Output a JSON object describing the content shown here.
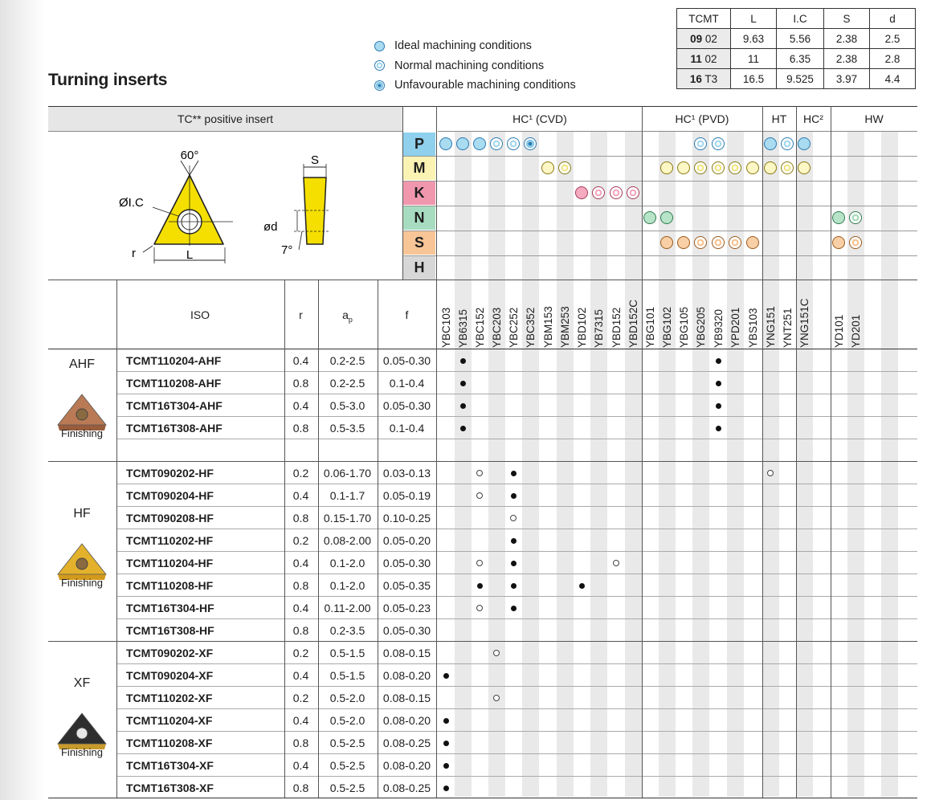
{
  "title": "Turning inserts",
  "legend": [
    {
      "kind": "ideal",
      "label": "Ideal machining conditions"
    },
    {
      "kind": "normal",
      "label": "Normal machining conditions"
    },
    {
      "kind": "unfav",
      "label": "Unfavourable machining conditions"
    }
  ],
  "dim_table": {
    "headers": [
      "TCMT",
      "L",
      "I.C",
      "S",
      "d"
    ],
    "rows": [
      {
        "size_bold": "09",
        "size": "02",
        "values": [
          "9.63",
          "5.56",
          "2.38",
          "2.5"
        ]
      },
      {
        "size_bold": "11",
        "size": "02",
        "values": [
          "11",
          "6.35",
          "2.38",
          "2.8"
        ]
      },
      {
        "size_bold": "16",
        "size": "T3",
        "values": [
          "16.5",
          "9.525",
          "3.97",
          "4.4"
        ]
      }
    ]
  },
  "insert_header": "TC** positive insert",
  "diagram": {
    "angle": "60°",
    "ic": "ØI.C",
    "r": "r",
    "l": "L",
    "s": "S",
    "d": "ød",
    "relief": "7°"
  },
  "groups": [
    {
      "label": "HC¹ (CVD)"
    },
    {
      "label": "HC¹ (PVD)"
    },
    {
      "label": "HT"
    },
    {
      "label": "HC²"
    },
    {
      "label": "HW"
    }
  ],
  "materials": [
    {
      "letter": "P",
      "color": "#8fd0ec"
    },
    {
      "letter": "M",
      "color": "#fbf3b4"
    },
    {
      "letter": "K",
      "color": "#f097ae"
    },
    {
      "letter": "N",
      "color": "#a8dcc0"
    },
    {
      "letter": "S",
      "color": "#f7c596"
    },
    {
      "letter": "H",
      "color": "#d7d7d7"
    }
  ],
  "columns": {
    "iso": "ISO",
    "r": "r",
    "ap": "a",
    "ap_sub": "p",
    "f": "f"
  },
  "grades": [
    "YBC103",
    "YB6315",
    "YBC152",
    "YBC203",
    "YBC252",
    "YBC352",
    "YBM153",
    "YBM253",
    "YBD102",
    "YB7315",
    "YBD152",
    "YBD152C",
    "YBG101",
    "YBG102",
    "YBG105",
    "YBG205",
    "YB9320",
    "YPD201",
    "YBS103",
    "YNG151",
    "YNT251",
    "YNG151C",
    "",
    "YD101",
    "YD201"
  ],
  "conditions": [
    [
      [
        0,
        "ideal"
      ],
      [
        1,
        "ideal"
      ],
      [
        2,
        "ideal"
      ],
      [
        3,
        "normal"
      ],
      [
        4,
        "normal"
      ],
      [
        5,
        "unfav"
      ],
      [
        15,
        "normal"
      ],
      [
        16,
        "normal"
      ],
      [
        19,
        "ideal"
      ],
      [
        20,
        "normal"
      ],
      [
        21,
        "ideal"
      ]
    ],
    [
      [
        6,
        "ideal"
      ],
      [
        7,
        "normal"
      ],
      [
        13,
        "ideal"
      ],
      [
        14,
        "ideal"
      ],
      [
        15,
        "normal"
      ],
      [
        16,
        "normal"
      ],
      [
        17,
        "normal"
      ],
      [
        18,
        "ideal"
      ],
      [
        19,
        "ideal"
      ],
      [
        20,
        "normal"
      ],
      [
        21,
        "ideal"
      ]
    ],
    [
      [
        8,
        "pink"
      ],
      [
        9,
        "normal"
      ],
      [
        10,
        "normal"
      ],
      [
        11,
        "normal"
      ]
    ],
    [
      [
        12,
        "ideal"
      ],
      [
        13,
        "ideal"
      ],
      [
        23,
        "ideal"
      ],
      [
        24,
        "normal"
      ]
    ],
    [
      [
        13,
        "ideal"
      ],
      [
        14,
        "ideal"
      ],
      [
        15,
        "normal"
      ],
      [
        16,
        "normal"
      ],
      [
        17,
        "normal"
      ],
      [
        18,
        "ideal"
      ],
      [
        23,
        "ideal"
      ],
      [
        24,
        "normal"
      ]
    ],
    []
  ],
  "sections": [
    {
      "name": "AHF",
      "finish": "Finishing",
      "insert_color": "#b97a55",
      "rows": [
        {
          "iso": "TCMT110204-AHF",
          "r": "0.4",
          "ap": "0.2-2.5",
          "f": "0.05-0.30",
          "marks": [
            [
              1,
              "f"
            ],
            [
              16,
              "f"
            ]
          ]
        },
        {
          "iso": "TCMT110208-AHF",
          "r": "0.8",
          "ap": "0.2-2.5",
          "f": "0.1-0.4",
          "marks": [
            [
              1,
              "f"
            ],
            [
              16,
              "f"
            ]
          ]
        },
        {
          "iso": "TCMT16T304-AHF",
          "r": "0.4",
          "ap": "0.5-3.0",
          "f": "0.05-0.30",
          "marks": [
            [
              1,
              "f"
            ],
            [
              16,
              "f"
            ]
          ]
        },
        {
          "iso": "TCMT16T308-AHF",
          "r": "0.8",
          "ap": "0.5-3.5",
          "f": "0.1-0.4",
          "marks": [
            [
              1,
              "f"
            ],
            [
              16,
              "f"
            ]
          ]
        }
      ]
    },
    {
      "name": "HF",
      "finish": "Finishing",
      "insert_color": "#e3b12c",
      "rows": [
        {
          "iso": "TCMT090202-HF",
          "r": "0.2",
          "ap": "0.06-1.70",
          "f": "0.03-0.13",
          "marks": [
            [
              2,
              "o"
            ],
            [
              4,
              "f"
            ],
            [
              19,
              "o"
            ]
          ]
        },
        {
          "iso": "TCMT090204-HF",
          "r": "0.4",
          "ap": "0.1-1.7",
          "f": "0.05-0.19",
          "marks": [
            [
              2,
              "o"
            ],
            [
              4,
              "f"
            ]
          ]
        },
        {
          "iso": "TCMT090208-HF",
          "r": "0.8",
          "ap": "0.15-1.70",
          "f": "0.10-0.25",
          "marks": [
            [
              4,
              "o"
            ]
          ]
        },
        {
          "iso": "TCMT110202-HF",
          "r": "0.2",
          "ap": "0.08-2.00",
          "f": "0.05-0.20",
          "marks": [
            [
              4,
              "f"
            ]
          ]
        },
        {
          "iso": "TCMT110204-HF",
          "r": "0.4",
          "ap": "0.1-2.0",
          "f": "0.05-0.30",
          "marks": [
            [
              2,
              "o"
            ],
            [
              4,
              "f"
            ],
            [
              10,
              "o"
            ]
          ]
        },
        {
          "iso": "TCMT110208-HF",
          "r": "0.8",
          "ap": "0.1-2.0",
          "f": "0.05-0.35",
          "marks": [
            [
              2,
              "f"
            ],
            [
              4,
              "f"
            ],
            [
              8,
              "f"
            ]
          ]
        },
        {
          "iso": "TCMT16T304-HF",
          "r": "0.4",
          "ap": "0.11-2.00",
          "f": "0.05-0.23",
          "marks": [
            [
              2,
              "o"
            ],
            [
              4,
              "f"
            ]
          ]
        },
        {
          "iso": "TCMT16T308-HF",
          "r": "0.8",
          "ap": "0.2-3.5",
          "f": "0.05-0.30",
          "marks": []
        }
      ]
    },
    {
      "name": "XF",
      "finish": "Finishing",
      "insert_color": "#2e2e2e",
      "rows": [
        {
          "iso": "TCMT090202-XF",
          "r": "0.2",
          "ap": "0.5-1.5",
          "f": "0.08-0.15",
          "marks": [
            [
              3,
              "o"
            ]
          ]
        },
        {
          "iso": "TCMT090204-XF",
          "r": "0.4",
          "ap": "0.5-1.5",
          "f": "0.08-0.20",
          "marks": [
            [
              0,
              "f"
            ]
          ]
        },
        {
          "iso": "TCMT110202-XF",
          "r": "0.2",
          "ap": "0.5-2.0",
          "f": "0.08-0.15",
          "marks": [
            [
              3,
              "o"
            ]
          ]
        },
        {
          "iso": "TCMT110204-XF",
          "r": "0.4",
          "ap": "0.5-2.0",
          "f": "0.08-0.20",
          "marks": [
            [
              0,
              "f"
            ]
          ]
        },
        {
          "iso": "TCMT110208-XF",
          "r": "0.8",
          "ap": "0.5-2.5",
          "f": "0.08-0.25",
          "marks": [
            [
              0,
              "f"
            ]
          ]
        },
        {
          "iso": "TCMT16T304-XF",
          "r": "0.4",
          "ap": "0.5-2.5",
          "f": "0.08-0.20",
          "marks": [
            [
              0,
              "f"
            ]
          ]
        },
        {
          "iso": "TCMT16T308-XF",
          "r": "0.8",
          "ap": "0.5-2.5",
          "f": "0.08-0.25",
          "marks": [
            [
              0,
              "f"
            ]
          ]
        }
      ]
    }
  ]
}
